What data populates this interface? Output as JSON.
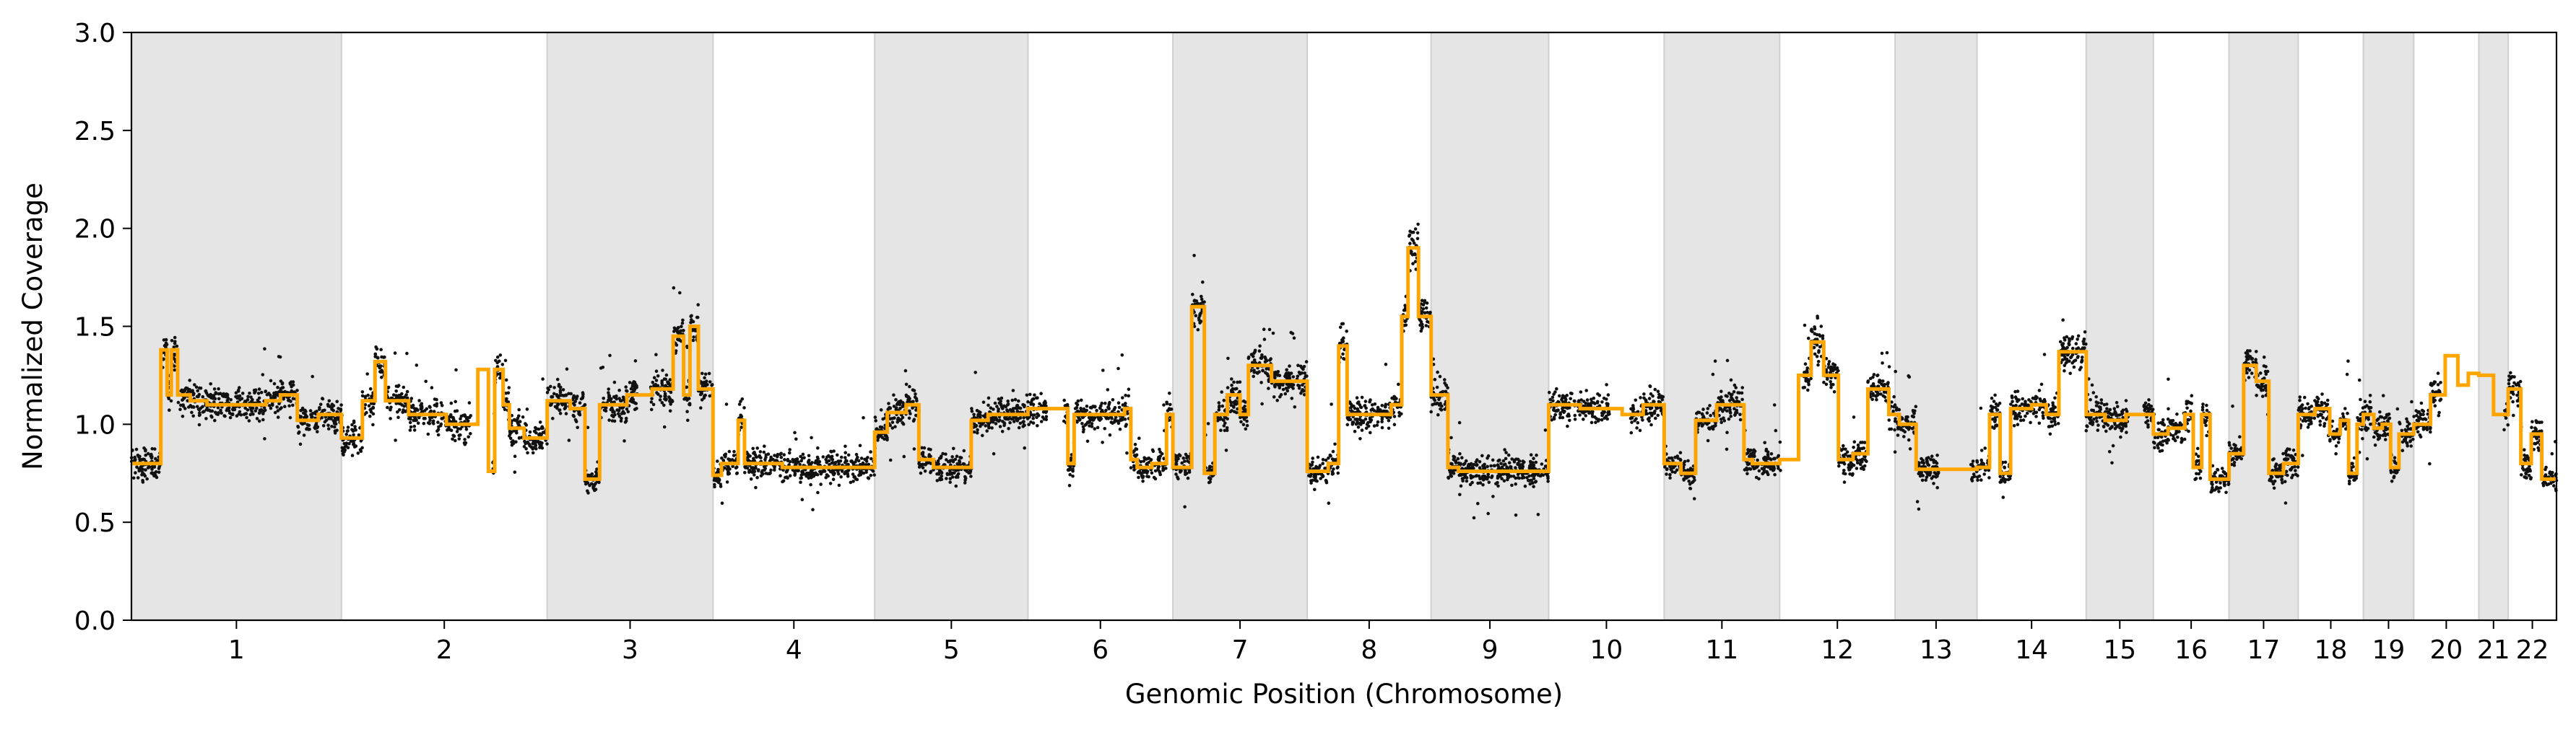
{
  "chart_data": {
    "type": "scatter",
    "title": "",
    "xlabel": "Genomic Position (Chromosome)",
    "ylabel": "Normalized Coverage",
    "ylim": [
      0.0,
      3.0
    ],
    "yticks": [
      0.0,
      0.5,
      1.0,
      1.5,
      2.0,
      2.5,
      3.0
    ],
    "ytick_labels": [
      "0.0",
      "0.5",
      "1.0",
      "1.5",
      "2.0",
      "2.5",
      "3.0"
    ],
    "grid": false,
    "colors": {
      "points": "#111111",
      "segments": "#ffa500",
      "band": "#e5e5e5",
      "band_edge": "#cfcfcf"
    },
    "chromosomes": [
      {
        "label": "1",
        "start": 0.0,
        "end": 1.0,
        "shaded": true
      },
      {
        "label": "2",
        "start": 1.0,
        "end": 1.98,
        "shaded": false
      },
      {
        "label": "3",
        "start": 1.98,
        "end": 2.77,
        "shaded": true
      },
      {
        "label": "4",
        "start": 2.77,
        "end": 3.54,
        "shaded": false
      },
      {
        "label": "5",
        "start": 3.54,
        "end": 4.27,
        "shaded": true
      },
      {
        "label": "6",
        "start": 4.27,
        "end": 4.96,
        "shaded": false
      },
      {
        "label": "7",
        "start": 4.96,
        "end": 5.6,
        "shaded": true
      },
      {
        "label": "8",
        "start": 5.6,
        "end": 6.19,
        "shaded": false
      },
      {
        "label": "9",
        "start": 6.19,
        "end": 6.75,
        "shaded": true
      },
      {
        "label": "10",
        "start": 6.75,
        "end": 7.3,
        "shaded": false
      },
      {
        "label": "11",
        "start": 7.3,
        "end": 7.85,
        "shaded": true
      },
      {
        "label": "12",
        "start": 7.85,
        "end": 8.4,
        "shaded": false
      },
      {
        "label": "13",
        "start": 8.4,
        "end": 8.79,
        "shaded": true
      },
      {
        "label": "14",
        "start": 8.79,
        "end": 9.31,
        "shaded": false
      },
      {
        "label": "15",
        "start": 9.31,
        "end": 9.63,
        "shaded": true
      },
      {
        "label": "16",
        "start": 9.63,
        "end": 9.99,
        "shaded": false
      },
      {
        "label": "17",
        "start": 9.99,
        "end": 10.32,
        "shaded": true
      },
      {
        "label": "18",
        "start": 10.32,
        "end": 10.63,
        "shaded": false
      },
      {
        "label": "19",
        "start": 10.63,
        "end": 10.87,
        "shaded": true
      },
      {
        "label": "20",
        "start": 10.87,
        "end": 11.18,
        "shaded": false
      },
      {
        "label": "21",
        "start": 11.18,
        "end": 11.32,
        "shaded": true
      },
      {
        "label": "22",
        "start": 11.32,
        "end": 11.55,
        "shaded": false
      }
    ],
    "segments": [
      [
        0.0,
        0.14,
        0.8
      ],
      [
        0.14,
        0.17,
        1.38
      ],
      [
        0.17,
        0.19,
        1.15
      ],
      [
        0.19,
        0.22,
        1.38
      ],
      [
        0.22,
        0.28,
        1.15
      ],
      [
        0.28,
        0.36,
        1.12
      ],
      [
        0.36,
        0.5,
        1.1
      ],
      [
        0.5,
        0.64,
        1.1
      ],
      [
        0.64,
        0.71,
        1.12
      ],
      [
        0.71,
        0.79,
        1.15
      ],
      [
        0.79,
        0.89,
        1.02
      ],
      [
        0.89,
        1.0,
        1.05
      ],
      [
        1.0,
        1.1,
        0.93
      ],
      [
        1.1,
        1.16,
        1.12
      ],
      [
        1.16,
        1.21,
        1.32
      ],
      [
        1.21,
        1.32,
        1.12
      ],
      [
        1.32,
        1.5,
        1.05
      ],
      [
        1.5,
        1.65,
        1.0
      ],
      [
        1.65,
        1.7,
        1.28
      ],
      [
        1.7,
        1.73,
        0.76
      ],
      [
        1.73,
        1.77,
        1.28
      ],
      [
        1.77,
        1.8,
        1.1
      ],
      [
        1.8,
        1.87,
        0.98
      ],
      [
        1.87,
        1.98,
        0.93
      ],
      [
        1.98,
        2.09,
        1.12
      ],
      [
        2.09,
        2.16,
        1.08
      ],
      [
        2.16,
        2.23,
        0.72
      ],
      [
        2.23,
        2.36,
        1.1
      ],
      [
        2.36,
        2.48,
        1.15
      ],
      [
        2.48,
        2.58,
        1.18
      ],
      [
        2.58,
        2.63,
        1.45
      ],
      [
        2.63,
        2.66,
        1.15
      ],
      [
        2.66,
        2.7,
        1.5
      ],
      [
        2.7,
        2.77,
        1.18
      ],
      [
        2.77,
        2.81,
        0.74
      ],
      [
        2.81,
        2.89,
        0.8
      ],
      [
        2.89,
        2.92,
        1.02
      ],
      [
        2.92,
        3.1,
        0.8
      ],
      [
        3.1,
        3.54,
        0.78
      ],
      [
        3.54,
        3.6,
        0.96
      ],
      [
        3.6,
        3.69,
        1.06
      ],
      [
        3.69,
        3.75,
        1.1
      ],
      [
        3.75,
        3.82,
        0.82
      ],
      [
        3.82,
        4.0,
        0.78
      ],
      [
        4.0,
        4.08,
        1.02
      ],
      [
        4.08,
        4.27,
        1.05
      ],
      [
        4.27,
        4.38,
        1.08
      ],
      [
        4.38,
        4.46,
        1.08
      ],
      [
        4.46,
        4.49,
        0.8
      ],
      [
        4.49,
        4.56,
        1.05
      ],
      [
        4.56,
        4.73,
        1.05
      ],
      [
        4.73,
        4.76,
        1.08
      ],
      [
        4.76,
        4.79,
        0.82
      ],
      [
        4.79,
        4.86,
        0.78
      ],
      [
        4.86,
        4.93,
        0.8
      ],
      [
        4.93,
        4.96,
        1.05
      ],
      [
        4.96,
        5.02,
        0.78
      ],
      [
        5.02,
        5.05,
        0.78
      ],
      [
        5.05,
        5.11,
        1.6
      ],
      [
        5.11,
        5.16,
        0.75
      ],
      [
        5.16,
        5.22,
        1.05
      ],
      [
        5.22,
        5.28,
        1.15
      ],
      [
        5.28,
        5.32,
        1.05
      ],
      [
        5.32,
        5.43,
        1.3
      ],
      [
        5.43,
        5.6,
        1.22
      ],
      [
        5.6,
        5.7,
        0.76
      ],
      [
        5.7,
        5.75,
        0.8
      ],
      [
        5.75,
        5.79,
        1.4
      ],
      [
        5.79,
        6.0,
        1.05
      ],
      [
        6.0,
        6.05,
        1.1
      ],
      [
        6.05,
        6.08,
        1.55
      ],
      [
        6.08,
        6.13,
        1.9
      ],
      [
        6.13,
        6.19,
        1.55
      ],
      [
        6.19,
        6.27,
        1.15
      ],
      [
        6.27,
        6.32,
        0.78
      ],
      [
        6.32,
        6.75,
        0.76
      ],
      [
        6.75,
        6.9,
        1.1
      ],
      [
        6.9,
        7.1,
        1.08
      ],
      [
        7.1,
        7.2,
        1.05
      ],
      [
        7.2,
        7.3,
        1.1
      ],
      [
        7.3,
        7.38,
        0.8
      ],
      [
        7.38,
        7.45,
        0.75
      ],
      [
        7.45,
        7.55,
        1.02
      ],
      [
        7.55,
        7.68,
        1.1
      ],
      [
        7.68,
        7.72,
        0.82
      ],
      [
        7.72,
        7.85,
        0.8
      ],
      [
        7.85,
        7.94,
        0.82
      ],
      [
        7.94,
        8.0,
        1.25
      ],
      [
        8.0,
        8.06,
        1.42
      ],
      [
        8.06,
        8.13,
        1.25
      ],
      [
        8.13,
        8.2,
        0.82
      ],
      [
        8.2,
        8.27,
        0.85
      ],
      [
        8.27,
        8.37,
        1.18
      ],
      [
        8.37,
        8.42,
        1.05
      ],
      [
        8.42,
        8.5,
        1.0
      ],
      [
        8.5,
        8.79,
        0.77
      ],
      [
        8.79,
        8.85,
        0.78
      ],
      [
        8.85,
        8.9,
        1.05
      ],
      [
        8.9,
        8.95,
        0.75
      ],
      [
        8.95,
        9.05,
        1.08
      ],
      [
        9.05,
        9.12,
        1.1
      ],
      [
        9.12,
        9.18,
        1.05
      ],
      [
        9.18,
        9.31,
        1.37
      ],
      [
        9.31,
        9.4,
        1.05
      ],
      [
        9.4,
        9.5,
        1.02
      ],
      [
        9.5,
        9.63,
        1.05
      ],
      [
        9.63,
        9.7,
        0.95
      ],
      [
        9.7,
        9.78,
        0.98
      ],
      [
        9.78,
        9.82,
        1.05
      ],
      [
        9.82,
        9.86,
        0.78
      ],
      [
        9.86,
        9.9,
        1.05
      ],
      [
        9.9,
        9.95,
        0.72
      ],
      [
        9.95,
        9.99,
        0.72
      ],
      [
        9.99,
        10.06,
        0.85
      ],
      [
        10.06,
        10.12,
        1.3
      ],
      [
        10.12,
        10.18,
        1.22
      ],
      [
        10.18,
        10.25,
        0.75
      ],
      [
        10.25,
        10.32,
        0.8
      ],
      [
        10.32,
        10.4,
        1.05
      ],
      [
        10.4,
        10.47,
        1.08
      ],
      [
        10.47,
        10.52,
        0.95
      ],
      [
        10.52,
        10.56,
        1.02
      ],
      [
        10.56,
        10.6,
        0.75
      ],
      [
        10.6,
        10.63,
        1.0
      ],
      [
        10.63,
        10.68,
        1.05
      ],
      [
        10.68,
        10.72,
        0.98
      ],
      [
        10.72,
        10.76,
        1.0
      ],
      [
        10.76,
        10.8,
        0.78
      ],
      [
        10.8,
        10.87,
        0.95
      ],
      [
        10.87,
        10.95,
        1.0
      ],
      [
        10.95,
        11.02,
        1.15
      ],
      [
        11.02,
        11.08,
        1.35
      ],
      [
        11.08,
        11.13,
        1.2
      ],
      [
        11.13,
        11.18,
        1.26
      ],
      [
        11.18,
        11.25,
        1.25
      ],
      [
        11.25,
        11.32,
        1.05
      ],
      [
        11.32,
        11.38,
        1.18
      ],
      [
        11.38,
        11.43,
        0.8
      ],
      [
        11.43,
        11.48,
        0.95
      ],
      [
        11.48,
        11.55,
        0.72
      ]
    ]
  }
}
